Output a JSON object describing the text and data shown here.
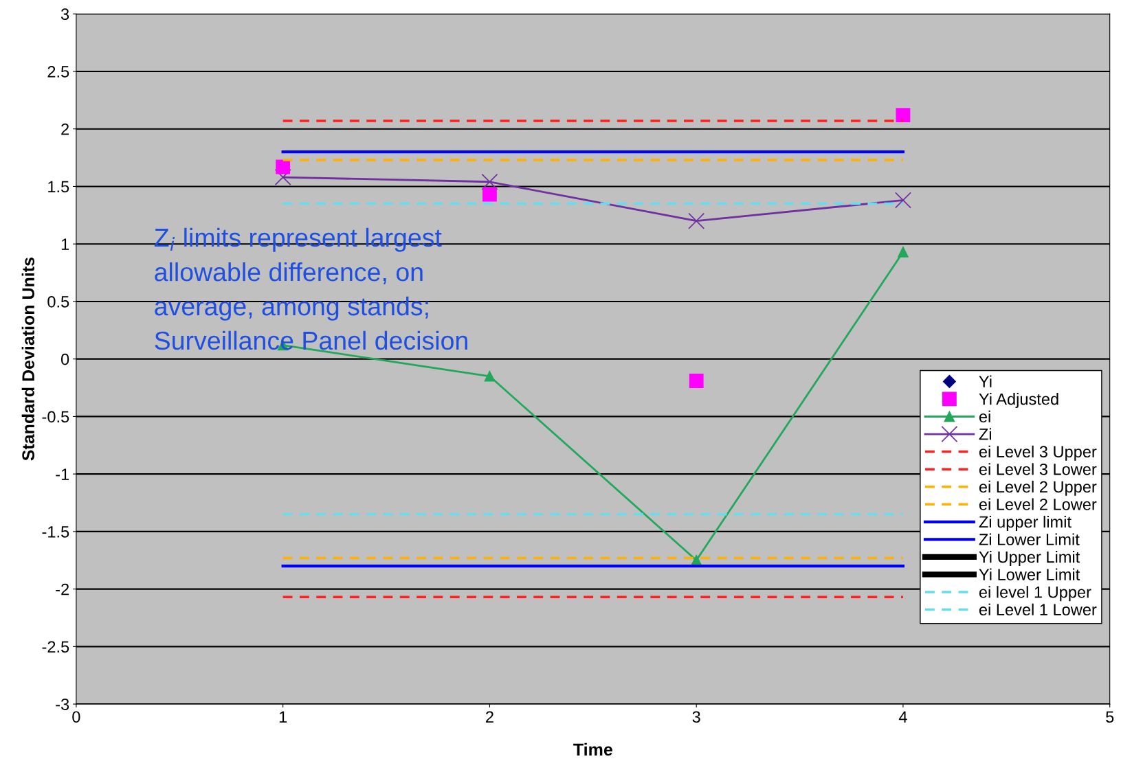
{
  "chart_data": {
    "type": "line",
    "xlabel": "Time",
    "ylabel": "Standard Deviation Units",
    "xlim": [
      0,
      5
    ],
    "xticks": [
      0,
      1,
      2,
      3,
      4,
      5
    ],
    "ylim": [
      -3,
      3
    ],
    "yticks": [
      -3,
      -2.5,
      -2,
      -1.5,
      -1,
      -0.5,
      0,
      0.5,
      1,
      1.5,
      2,
      2.5,
      3
    ],
    "grid": "y",
    "legend": "right",
    "annotations": [
      "Z$_{i}$ limits represent largest\nallowable difference, on\naverage, among stands;\nSurveillance Panel decision"
    ],
    "series": [
      {
        "name": "Yi",
        "type": "scatter",
        "marker": "diamond",
        "color": "#000080",
        "values": [
          null,
          null,
          null,
          null
        ]
      },
      {
        "name": "Yi Adjusted",
        "type": "scatter",
        "marker": "square",
        "color": "#ff00ff",
        "x": [
          1,
          2,
          3,
          4
        ],
        "values": [
          1.67,
          1.43,
          -0.19,
          2.12
        ]
      },
      {
        "name": "ei",
        "type": "line",
        "marker": "triangle",
        "line_style": "solid",
        "color": "#22a85a",
        "x": [
          1,
          2,
          3,
          4
        ],
        "values": [
          0.12,
          -0.15,
          -1.75,
          0.93
        ]
      },
      {
        "name": "Zi",
        "type": "line",
        "marker": "cross",
        "line_style": "solid",
        "color": "#7030a0",
        "x": [
          1,
          2,
          3,
          4
        ],
        "values": [
          1.58,
          1.54,
          1.2,
          1.38
        ]
      },
      {
        "name": "ei Level 3 Upper",
        "type": "line",
        "marker": "none",
        "line_style": "dashed",
        "color": "#ff2020",
        "x": [
          1,
          4
        ],
        "values": [
          2.07,
          2.07
        ]
      },
      {
        "name": "ei Level 3 Lower",
        "type": "line",
        "marker": "none",
        "line_style": "dashed",
        "color": "#ff2020",
        "x": [
          1,
          4
        ],
        "values": [
          -2.07,
          -2.07
        ]
      },
      {
        "name": "ei Level 2 Upper",
        "type": "line",
        "marker": "none",
        "line_style": "dashed",
        "color": "#ffb000",
        "x": [
          1,
          4
        ],
        "values": [
          1.73,
          1.73
        ]
      },
      {
        "name": "ei Level 2 Lower",
        "type": "line",
        "marker": "none",
        "line_style": "dashed",
        "color": "#ffb000",
        "x": [
          1,
          4
        ],
        "values": [
          -1.73,
          -1.73
        ]
      },
      {
        "name": "Zi upper limit",
        "type": "line",
        "marker": "none",
        "line_style": "solid",
        "color": "#0000ee",
        "x": [
          1,
          4
        ],
        "values": [
          1.8,
          1.8
        ]
      },
      {
        "name": "Zi Lower Limit",
        "type": "line",
        "marker": "none",
        "line_style": "solid",
        "color": "#0000ee",
        "x": [
          1,
          4
        ],
        "values": [
          -1.8,
          -1.8
        ]
      },
      {
        "name": "Yi Upper Limit",
        "marker": "none",
        "line_style": "solid",
        "color": "#000000",
        "values": [
          null,
          null
        ]
      },
      {
        "name": "Yi Lower Limit",
        "marker": "none",
        "line_style": "solid",
        "color": "#000000",
        "values": [
          null,
          null
        ]
      },
      {
        "name": "ei level 1 Upper",
        "type": "line",
        "marker": "none",
        "line_style": "dashed",
        "color": "#66ddee",
        "x": [
          1,
          4
        ],
        "values": [
          1.35,
          1.35
        ]
      },
      {
        "name": "ei Level 1 Lower",
        "type": "line",
        "marker": "none",
        "line_style": "dashed",
        "color": "#66ddee",
        "x": [
          1,
          4
        ],
        "values": [
          -1.35,
          -1.35
        ]
      }
    ]
  }
}
